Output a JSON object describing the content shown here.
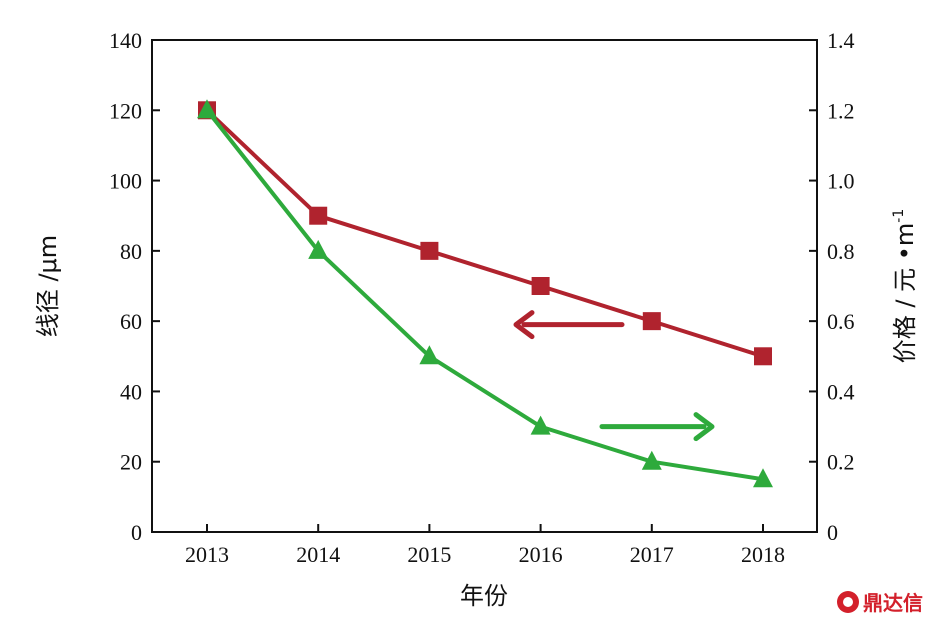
{
  "chart_data": {
    "type": "line",
    "categories": [
      "2013",
      "2014",
      "2015",
      "2016",
      "2017",
      "2018"
    ],
    "title": "",
    "xlabel": "年份",
    "ylabel_left": "线径 /μm",
    "ylabel_right": "价格 / 元 •m",
    "ylabel_right_sup": "-1",
    "ylim_left": [
      0,
      140
    ],
    "ylim_right": [
      0,
      1.4
    ],
    "yticks_left": [
      "0",
      "20",
      "40",
      "60",
      "80",
      "100",
      "120",
      "140"
    ],
    "yticks_right": [
      "0",
      "0.2",
      "0.4",
      "0.6",
      "0.8",
      "1.0",
      "1.2",
      "1.4"
    ],
    "grid": false,
    "legend": "none",
    "series": [
      {
        "axis": "left",
        "color": "#b0232e",
        "marker": "square",
        "values": [
          120,
          90,
          80,
          70,
          60,
          50
        ]
      },
      {
        "axis": "right",
        "color": "#2eaa3c",
        "marker": "triangle",
        "values": [
          1.2,
          0.8,
          0.5,
          0.3,
          0.2,
          0.15
        ]
      }
    ],
    "annotations": [
      {
        "type": "arrow",
        "direction": "left",
        "color": "#b0232e"
      },
      {
        "type": "arrow",
        "direction": "right",
        "color": "#2eaa3c"
      }
    ]
  },
  "watermark": {
    "text": "鼎达信"
  }
}
